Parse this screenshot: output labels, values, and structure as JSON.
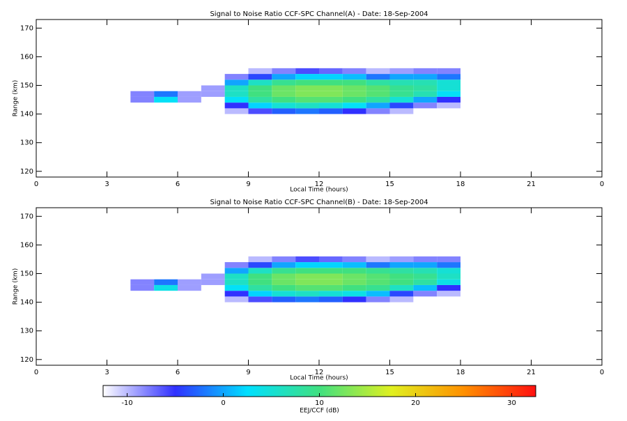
{
  "chart_data": [
    {
      "type": "heatmap",
      "title": "Signal to Noise Ratio CCF-SPC Channel(A) - Date: 18-Sep-2004",
      "xlabel": "Local Time (hours)",
      "ylabel": "Range (km)",
      "xbins": [
        0,
        1,
        2,
        3,
        4,
        5,
        6,
        7,
        8,
        9,
        10,
        11,
        12,
        13,
        14,
        15,
        16,
        17,
        18,
        19,
        20,
        21,
        22,
        23,
        24
      ],
      "ybins": [
        140,
        142,
        144,
        146,
        148,
        150,
        152,
        154,
        156
      ],
      "z": [
        [
          null,
          null,
          null,
          null,
          null,
          null,
          null,
          null,
          -10,
          -6,
          -3,
          -2,
          -3,
          -5,
          -8,
          -10,
          null,
          null,
          null,
          null,
          null,
          null,
          null,
          null
        ],
        [
          null,
          null,
          null,
          null,
          null,
          null,
          null,
          null,
          -5,
          2,
          5,
          6,
          5,
          3,
          0,
          -4,
          -8,
          -10,
          null,
          null,
          null,
          null,
          null,
          null
        ],
        [
          null,
          null,
          null,
          null,
          -8,
          3,
          -9,
          null,
          3,
          8,
          10,
          11,
          11,
          10,
          8,
          5,
          0,
          -5,
          null,
          null,
          null,
          null,
          null,
          null
        ],
        [
          null,
          null,
          null,
          null,
          -8,
          -2,
          -9,
          -9,
          6,
          10,
          12,
          13,
          13,
          12,
          11,
          9,
          7,
          3,
          null,
          null,
          null,
          null,
          null,
          null
        ],
        [
          null,
          null,
          null,
          null,
          null,
          null,
          null,
          -9,
          6,
          10,
          12,
          13,
          13,
          12,
          11,
          9,
          8,
          5,
          null,
          null,
          null,
          null,
          null,
          null
        ],
        [
          null,
          null,
          null,
          null,
          null,
          null,
          null,
          null,
          0,
          6,
          9,
          10,
          10,
          10,
          8,
          7,
          7,
          5,
          null,
          null,
          null,
          null,
          null,
          null
        ],
        [
          null,
          null,
          null,
          null,
          null,
          null,
          null,
          null,
          -8,
          -4,
          0,
          2,
          2,
          1,
          -2,
          0,
          0,
          -2,
          null,
          null,
          null,
          null,
          null,
          null
        ],
        [
          null,
          null,
          null,
          null,
          null,
          null,
          null,
          null,
          null,
          -10,
          -8,
          -6,
          -7,
          -8,
          -10,
          -9,
          -8,
          -8,
          null,
          null,
          null,
          null,
          null,
          null
        ]
      ],
      "xlim": [
        0,
        24
      ],
      "xticks": [
        0,
        3,
        6,
        9,
        12,
        15,
        18,
        21,
        {
          "value": 24,
          "label": "0"
        }
      ],
      "ylim": [
        118,
        173
      ],
      "yticks": [
        120,
        130,
        140,
        150,
        160,
        170
      ]
    },
    {
      "type": "heatmap",
      "title": "Signal to Noise Ratio CCF-SPC Channel(B) - Date: 18-Sep-2004",
      "xlabel": "Local Time (hours)",
      "ylabel": "Range (km)",
      "xbins": [
        0,
        1,
        2,
        3,
        4,
        5,
        6,
        7,
        8,
        9,
        10,
        11,
        12,
        13,
        14,
        15,
        16,
        17,
        18,
        19,
        20,
        21,
        22,
        23,
        24
      ],
      "ybins": [
        140,
        142,
        144,
        146,
        148,
        150,
        152,
        154,
        156
      ],
      "z": [
        [
          null,
          null,
          null,
          null,
          null,
          null,
          null,
          null,
          -10,
          -6,
          -3,
          -2,
          -3,
          -5,
          -8,
          -10,
          null,
          null,
          null,
          null,
          null,
          null,
          null,
          null
        ],
        [
          null,
          null,
          null,
          null,
          null,
          null,
          null,
          null,
          -5,
          2,
          5,
          6,
          5,
          4,
          1,
          -4,
          -8,
          -10,
          null,
          null,
          null,
          null,
          null,
          null
        ],
        [
          null,
          null,
          null,
          null,
          -8,
          4,
          -9,
          null,
          3,
          8,
          10,
          11,
          11,
          10,
          9,
          6,
          1,
          -5,
          null,
          null,
          null,
          null,
          null,
          null
        ],
        [
          null,
          null,
          null,
          null,
          -8,
          -2,
          -9,
          -9,
          6,
          10,
          12,
          13,
          13,
          12,
          11,
          10,
          8,
          4,
          null,
          null,
          null,
          null,
          null,
          null
        ],
        [
          null,
          null,
          null,
          null,
          null,
          null,
          null,
          -9,
          6,
          10,
          12,
          13,
          13,
          12,
          11,
          10,
          9,
          6,
          null,
          null,
          null,
          null,
          null,
          null
        ],
        [
          null,
          null,
          null,
          null,
          null,
          null,
          null,
          null,
          0,
          6,
          9,
          10,
          10,
          10,
          9,
          8,
          7,
          5,
          null,
          null,
          null,
          null,
          null,
          null
        ],
        [
          null,
          null,
          null,
          null,
          null,
          null,
          null,
          null,
          -8,
          -4,
          0,
          2,
          2,
          1,
          -2,
          0,
          0,
          -2,
          null,
          null,
          null,
          null,
          null,
          null
        ],
        [
          null,
          null,
          null,
          null,
          null,
          null,
          null,
          null,
          null,
          -10,
          -8,
          -6,
          -7,
          -8,
          -10,
          -9,
          -8,
          -8,
          null,
          null,
          null,
          null,
          null,
          null
        ]
      ],
      "xlim": [
        0,
        24
      ],
      "xticks": [
        0,
        3,
        6,
        9,
        12,
        15,
        18,
        21,
        {
          "value": 24,
          "label": "0"
        }
      ],
      "ylim": [
        118,
        173
      ],
      "yticks": [
        120,
        130,
        140,
        150,
        160,
        170
      ]
    },
    {
      "type": "colorbar",
      "label": "EEJ/CCF (dB)",
      "clim": [
        -12.5,
        32.5
      ],
      "ticks": [
        -10,
        0,
        10,
        20,
        30
      ],
      "colormap": [
        "#ffffff",
        "#3030ff",
        "#00e0ff",
        "#40e080",
        "#e0f020",
        "#ff9000",
        "#ff1010"
      ]
    }
  ]
}
